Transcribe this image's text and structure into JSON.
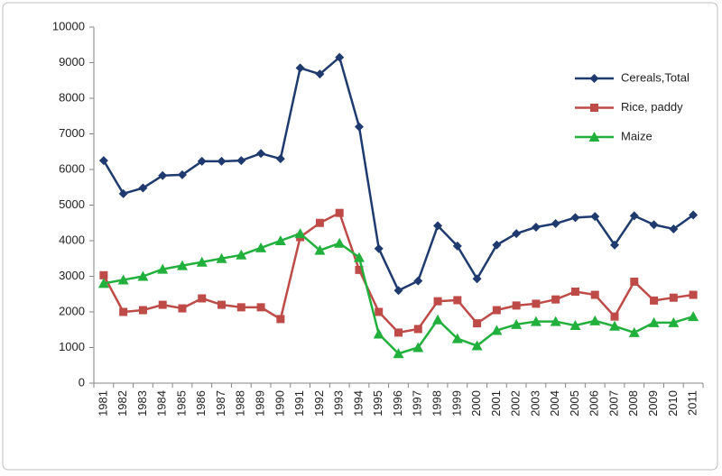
{
  "chart_data": {
    "type": "line",
    "categories": [
      "1981",
      "1982",
      "1983",
      "1984",
      "1985",
      "1986",
      "1987",
      "1988",
      "1989",
      "1990",
      "1991",
      "1992",
      "1993",
      "1994",
      "1995",
      "1996",
      "1997",
      "1998",
      "1999",
      "2000",
      "2001",
      "2002",
      "2003",
      "2004",
      "2005",
      "2006",
      "2007",
      "2008",
      "2009",
      "2010",
      "2011"
    ],
    "series": [
      {
        "name": "Cereals,Total",
        "color": "#1f3a6e",
        "marker": "diamond",
        "values": [
          6250,
          5320,
          5480,
          5830,
          5850,
          6230,
          6230,
          6250,
          6450,
          6300,
          8850,
          8680,
          9150,
          7200,
          3780,
          2600,
          2870,
          4420,
          3850,
          2930,
          3880,
          4200,
          4380,
          4480,
          4650,
          4680,
          3880,
          4700,
          4450,
          4330,
          4720
        ]
      },
      {
        "name": "Rice, paddy",
        "color": "#be4b48",
        "marker": "square",
        "values": [
          3030,
          2000,
          2050,
          2200,
          2100,
          2380,
          2200,
          2130,
          2130,
          1800,
          4100,
          4500,
          4780,
          3180,
          2000,
          1420,
          1520,
          2300,
          2330,
          1680,
          2050,
          2180,
          2230,
          2350,
          2570,
          2480,
          1870,
          2850,
          2320,
          2400,
          2480
        ]
      },
      {
        "name": "Maize",
        "color": "#22b03c",
        "marker": "triangle",
        "values": [
          2800,
          2900,
          3000,
          3200,
          3300,
          3400,
          3500,
          3600,
          3800,
          4000,
          4200,
          3730,
          3930,
          3530,
          1380,
          830,
          1000,
          1780,
          1250,
          1050,
          1480,
          1650,
          1730,
          1730,
          1620,
          1750,
          1600,
          1420,
          1700,
          1700,
          1870
        ]
      }
    ],
    "ylim": [
      0,
      10000
    ],
    "yticks": [
      0,
      1000,
      2000,
      3000,
      4000,
      5000,
      6000,
      7000,
      8000,
      9000,
      10000
    ],
    "grid": false,
    "legend": "upper right"
  }
}
